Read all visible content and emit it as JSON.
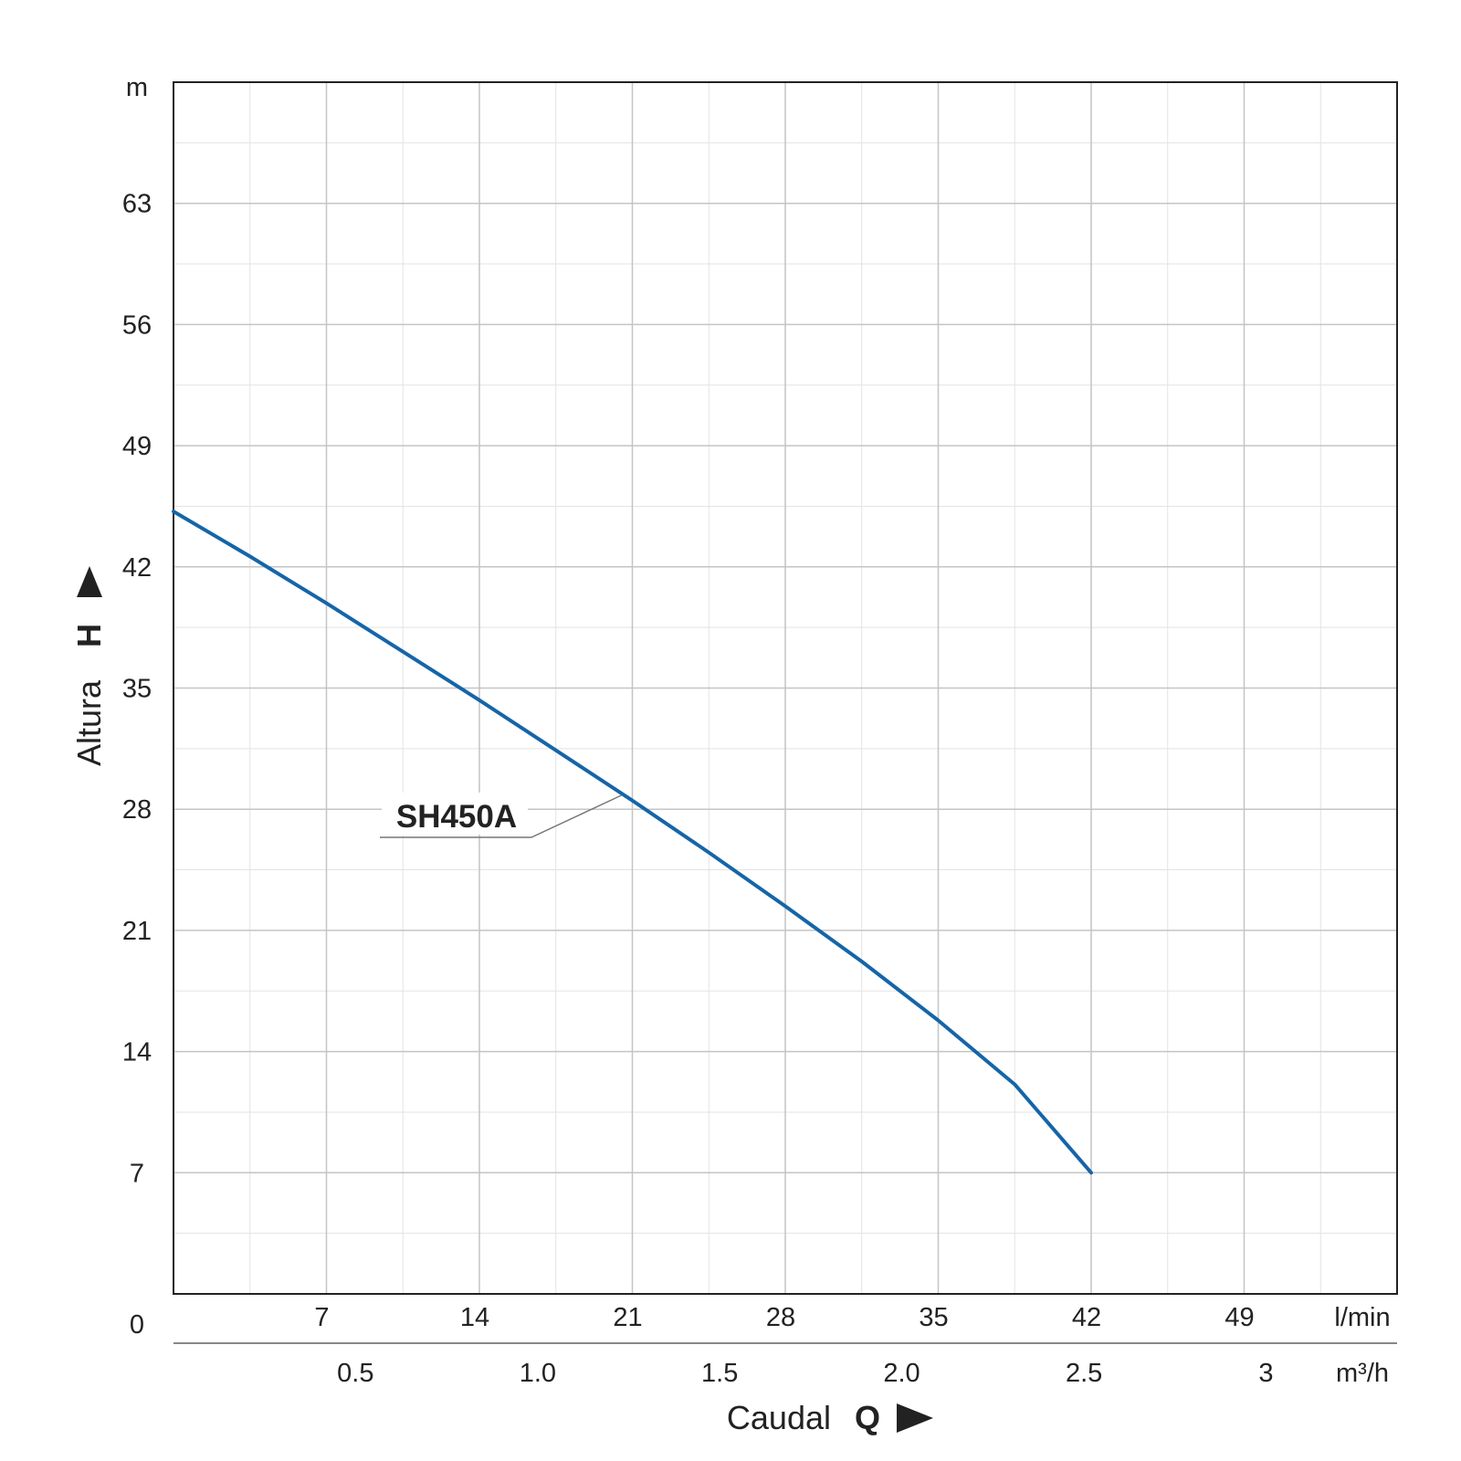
{
  "chart_data": {
    "type": "line",
    "xlabel": "Caudal",
    "xsymbol": "Q",
    "ylabel": "Altura",
    "ysymbol": "H",
    "y_unit": "m",
    "x_unit": "l/min",
    "x2_unit": "m³/h",
    "xlim": [
      0,
      56
    ],
    "ylim": [
      0,
      70
    ],
    "x_ticks": [
      7,
      14,
      21,
      28,
      35,
      42,
      49
    ],
    "y_ticks": [
      7,
      14,
      21,
      28,
      35,
      42,
      49,
      56,
      63
    ],
    "origin_label": "0",
    "x2_ticks": [
      {
        "label": "0.5",
        "lpm": 8.33
      },
      {
        "label": "1.0",
        "lpm": 16.67
      },
      {
        "label": "1.5",
        "lpm": 25
      },
      {
        "label": "2.0",
        "lpm": 33.33
      },
      {
        "label": "2.5",
        "lpm": 41.67
      },
      {
        "label": "3",
        "lpm": 50
      }
    ],
    "grid": true,
    "series_color": "#1565a8",
    "series": [
      {
        "name": "SH450A",
        "points": [
          [
            0,
            45.2
          ],
          [
            3.5,
            42.6
          ],
          [
            7,
            39.9
          ],
          [
            10.5,
            37.1
          ],
          [
            14,
            34.3
          ],
          [
            17.5,
            31.4
          ],
          [
            21,
            28.5
          ],
          [
            24.5,
            25.5
          ],
          [
            28,
            22.4
          ],
          [
            31.5,
            19.2
          ],
          [
            35,
            15.8
          ],
          [
            38.5,
            12.1
          ],
          [
            42,
            7.0
          ]
        ]
      }
    ],
    "annotation": {
      "text": "SH450A",
      "x": 20.5,
      "y": 28.8
    }
  }
}
